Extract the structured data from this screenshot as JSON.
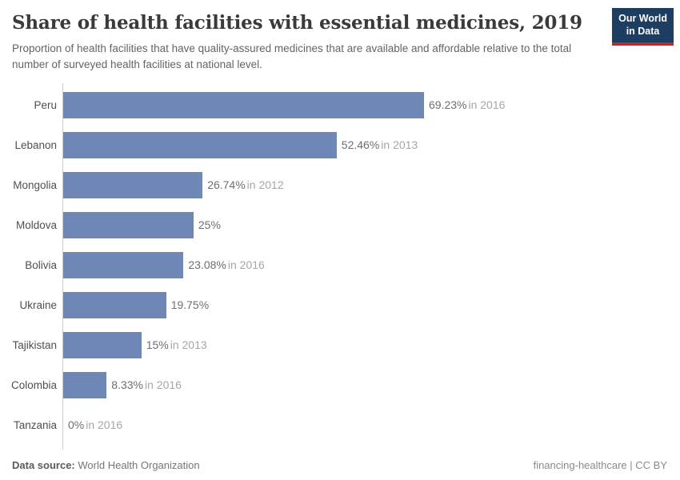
{
  "header": {
    "title": "Share of health facilities with essential medicines, 2019",
    "subtitle": "Proportion of health facilities that have quality-assured medicines that are available and affordable relative to the total number of surveyed health facilities at national level.",
    "logo": {
      "line1": "Our World",
      "line2": "in Data",
      "bg_color": "#1d3d63",
      "accent_color": "#b02e34",
      "text_color": "#ffffff"
    }
  },
  "chart_data": {
    "type": "bar",
    "orientation": "horizontal",
    "title": "Share of health facilities with essential medicines, 2019",
    "xlabel": "",
    "ylabel": "",
    "xlim": [
      0,
      70
    ],
    "grid": false,
    "legend": "none",
    "categories": [
      "Peru",
      "Lebanon",
      "Mongolia",
      "Moldova",
      "Bolivia",
      "Ukraine",
      "Tajikistan",
      "Colombia",
      "Tanzania"
    ],
    "values": [
      69.23,
      52.46,
      26.74,
      25,
      23.08,
      19.75,
      15,
      8.33,
      0
    ],
    "value_labels": [
      "69.23%",
      "52.46%",
      "26.74%",
      "25%",
      "23.08%",
      "19.75%",
      "15%",
      "8.33%",
      "0%"
    ],
    "year_labels": [
      "in 2016",
      "in 2013",
      "in 2012",
      "",
      "in 2016",
      "",
      "in 2013",
      "in 2016",
      "in 2016"
    ],
    "bar_color": "#6e87b4",
    "axis_color": "#cccccc"
  },
  "footer": {
    "datasource_label": "Data source:",
    "datasource_value": "World Health Organization",
    "credit": "financing-healthcare | CC BY"
  }
}
